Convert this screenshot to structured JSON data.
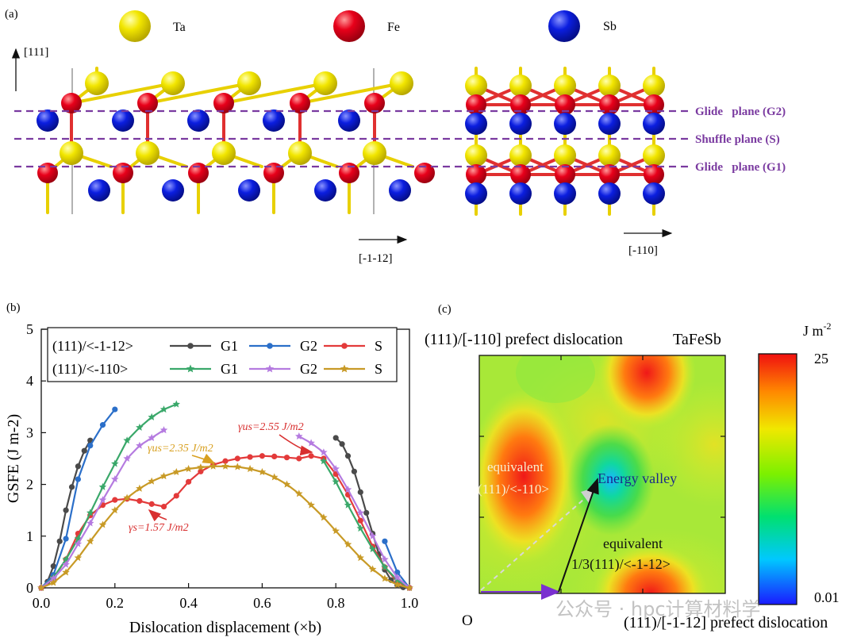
{
  "panel_a": {
    "label": "(a)",
    "legend": [
      {
        "name": "Ta",
        "color": "#f2e600"
      },
      {
        "name": "Fe",
        "color": "#e8001a"
      },
      {
        "name": "Sb",
        "color": "#0b1ee0"
      }
    ],
    "axis_up": "[111]",
    "axis_left_view": "[-1-12]",
    "axis_right_view": "[-110]",
    "planes": [
      "Glide   plane (G2)",
      "Shuffle plane (S)",
      "Glide   plane (G1)"
    ],
    "plane_color": "#7a3aa0"
  },
  "panel_b": {
    "label": "(b)",
    "legend_rows": [
      "(111)/<-1-12>",
      "(111)/<-110>"
    ],
    "annotations": {
      "us_red": "γus=2.55 J/m2",
      "us_gold": "γus=2.35 J/m2",
      "s_red": "γs=1.57 J/m2"
    }
  },
  "panel_c": {
    "label": "(c)",
    "title": "(111)/[-110] prefect dislocation",
    "material": "TaFeSb",
    "xlabel": "(111)/[-1-12] prefect dislocation",
    "origin": "O",
    "cbar_unit": "J m-2",
    "cbar_max": "25",
    "cbar_min": "0.01",
    "labels": {
      "eq110_a": "equivalent",
      "eq110_b": "(111)/<-110>",
      "valley": "Energy valley",
      "eq112_a": "equivalent",
      "eq112_b": "1/3(111)/<-1-12>"
    }
  },
  "watermark": "公众号 · hpc计算材料学",
  "chart_data": {
    "type": "line",
    "title": "",
    "xlabel": "Dislocation displacement (×b)",
    "ylabel": "GSFE (J m-2)",
    "xlim": [
      0,
      1.0
    ],
    "ylim": [
      0,
      5
    ],
    "xticks": [
      "0.0",
      "0.2",
      "0.4",
      "0.6",
      "0.8",
      "1.0"
    ],
    "yticks": [
      "0",
      "1",
      "2",
      "3",
      "4",
      "5"
    ],
    "series": [
      {
        "name": "G1",
        "family": "(111)/<-1-12>",
        "color": "#4a4a4a",
        "marker": "circle",
        "x": [
          0,
          0.017,
          0.033,
          0.05,
          0.067,
          0.083,
          0.1,
          0.117,
          0.133,
          0.8,
          0.817,
          0.833,
          0.85,
          0.867,
          0.883,
          0.9,
          0.917,
          0.933,
          0.95,
          0.967,
          0.983,
          1.0
        ],
        "y": [
          0,
          0.12,
          0.42,
          0.9,
          1.5,
          1.95,
          2.35,
          2.65,
          2.85,
          2.9,
          2.78,
          2.55,
          2.25,
          1.85,
          1.45,
          1.05,
          0.65,
          0.35,
          0.15,
          0.05,
          0.01,
          0
        ]
      },
      {
        "name": "G2",
        "family": "(111)/<-1-12>",
        "color": "#2b6fc9",
        "marker": "circle",
        "x": [
          0,
          0.033,
          0.067,
          0.1,
          0.133,
          0.167,
          0.2,
          0.933,
          0.967,
          1.0
        ],
        "y": [
          0,
          0.25,
          0.95,
          2.1,
          2.75,
          3.15,
          3.45,
          0.9,
          0.3,
          0
        ]
      },
      {
        "name": "S",
        "family": "(111)/<-1-12>",
        "color": "#e33a3a",
        "marker": "circle",
        "x": [
          0,
          0.033,
          0.067,
          0.1,
          0.133,
          0.167,
          0.2,
          0.233,
          0.267,
          0.3,
          0.333,
          0.367,
          0.4,
          0.433,
          0.467,
          0.5,
          0.533,
          0.567,
          0.6,
          0.633,
          0.667,
          0.7,
          0.733,
          0.767,
          0.8,
          0.833,
          0.867,
          0.9,
          0.933,
          0.967,
          1.0
        ],
        "y": [
          0,
          0.18,
          0.55,
          1.05,
          1.4,
          1.6,
          1.7,
          1.72,
          1.68,
          1.62,
          1.57,
          1.78,
          2.05,
          2.25,
          2.38,
          2.45,
          2.5,
          2.53,
          2.55,
          2.54,
          2.52,
          2.5,
          2.55,
          2.5,
          2.2,
          1.8,
          1.3,
          0.8,
          0.4,
          0.12,
          0
        ]
      },
      {
        "name": "G1",
        "family": "(111)/<-110>",
        "color": "#3aa86a",
        "marker": "star",
        "x": [
          0,
          0.033,
          0.067,
          0.1,
          0.133,
          0.167,
          0.2,
          0.233,
          0.267,
          0.3,
          0.333,
          0.367,
          0.767,
          0.8,
          0.833,
          0.867,
          0.9,
          0.933,
          0.967,
          1.0
        ],
        "y": [
          0,
          0.2,
          0.55,
          0.95,
          1.45,
          1.95,
          2.4,
          2.85,
          3.1,
          3.3,
          3.45,
          3.55,
          2.45,
          2.05,
          1.6,
          1.15,
          0.75,
          0.4,
          0.15,
          0
        ]
      },
      {
        "name": "G2",
        "family": "(111)/<-110>",
        "color": "#b57be0",
        "marker": "star",
        "x": [
          0,
          0.033,
          0.067,
          0.1,
          0.133,
          0.167,
          0.2,
          0.233,
          0.267,
          0.3,
          0.333,
          0.7,
          0.733,
          0.767,
          0.8,
          0.833,
          0.867,
          0.9,
          0.933,
          0.967,
          1.0
        ],
        "y": [
          0,
          0.18,
          0.45,
          0.85,
          1.25,
          1.7,
          2.1,
          2.5,
          2.75,
          2.9,
          3.05,
          2.93,
          2.8,
          2.62,
          2.3,
          1.9,
          1.45,
          1.0,
          0.55,
          0.2,
          0
        ]
      },
      {
        "name": "S",
        "family": "(111)/<-110>",
        "color": "#c89a26",
        "marker": "star",
        "x": [
          0,
          0.033,
          0.067,
          0.1,
          0.133,
          0.167,
          0.2,
          0.233,
          0.267,
          0.3,
          0.333,
          0.367,
          0.4,
          0.433,
          0.467,
          0.5,
          0.533,
          0.567,
          0.6,
          0.633,
          0.667,
          0.7,
          0.733,
          0.767,
          0.8,
          0.833,
          0.867,
          0.9,
          0.933,
          0.967,
          1.0
        ],
        "y": [
          0,
          0.1,
          0.3,
          0.58,
          0.9,
          1.22,
          1.5,
          1.74,
          1.92,
          2.06,
          2.16,
          2.24,
          2.3,
          2.33,
          2.35,
          2.35,
          2.34,
          2.3,
          2.24,
          2.14,
          2.0,
          1.82,
          1.6,
          1.36,
          1.1,
          0.84,
          0.58,
          0.36,
          0.18,
          0.06,
          0
        ]
      }
    ]
  }
}
